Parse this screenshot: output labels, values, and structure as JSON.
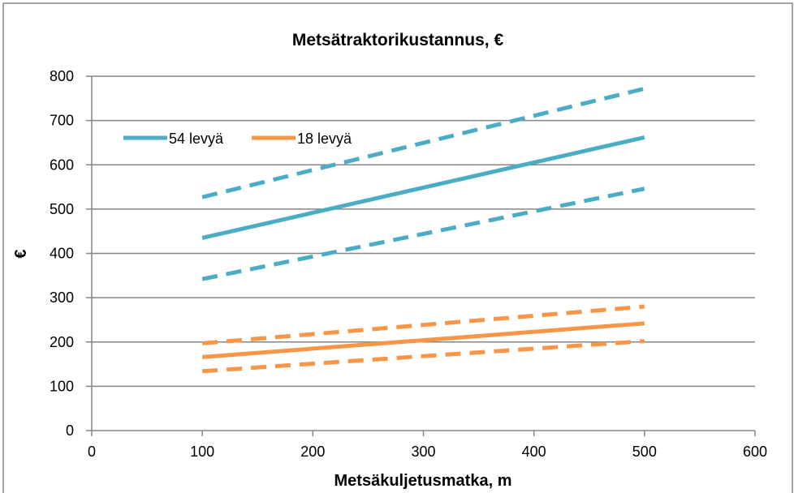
{
  "chart_data": {
    "type": "line",
    "title": "Metsätraktorikustannus, €",
    "xlabel": "Metsäkuljetusmatka, m",
    "ylabel": "€",
    "xlim": [
      0,
      600
    ],
    "ylim": [
      0,
      800
    ],
    "x_ticks": [
      "0",
      "100",
      "200",
      "300",
      "400",
      "500",
      "600"
    ],
    "y_ticks": [
      "0",
      "100",
      "200",
      "300",
      "400",
      "500",
      "600",
      "700",
      "800"
    ],
    "grid": "horizontal",
    "legend_position": "top-left",
    "series": [
      {
        "name": "54 levyä",
        "style": "solid",
        "color": "#4bacc6",
        "x": [
          100,
          500
        ],
        "y": [
          435,
          662
        ],
        "in_legend": true
      },
      {
        "color": "#4bacc6",
        "style": "dashed",
        "x": [
          100,
          500
        ],
        "y": [
          527,
          772
        ],
        "in_legend": false
      },
      {
        "color": "#4bacc6",
        "style": "dashed",
        "x": [
          100,
          500
        ],
        "y": [
          342,
          546
        ],
        "in_legend": false
      },
      {
        "name": "18 levyä",
        "style": "solid",
        "color": "#f79646",
        "x": [
          100,
          500
        ],
        "y": [
          166,
          242
        ],
        "in_legend": true
      },
      {
        "color": "#f79646",
        "style": "dashed",
        "x": [
          100,
          500
        ],
        "y": [
          197,
          280
        ],
        "in_legend": false
      },
      {
        "color": "#f79646",
        "style": "dashed",
        "x": [
          100,
          500
        ],
        "y": [
          134,
          202
        ],
        "in_legend": false
      }
    ]
  }
}
